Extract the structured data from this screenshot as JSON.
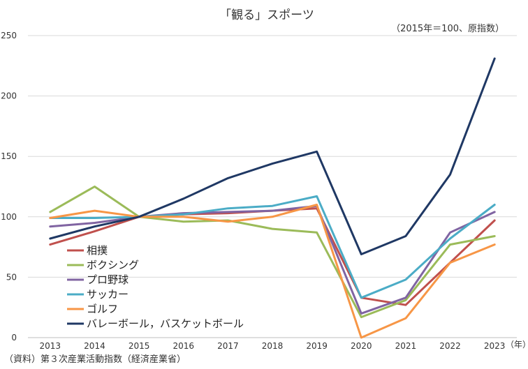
{
  "chart_data": {
    "type": "line",
    "title": "「観る」スポーツ",
    "index_note": "（2015年＝100、原指数）",
    "x_unit": "（年）",
    "source": "（資料）第３次産業活動指数（経済産業省）",
    "ylim": [
      0,
      250
    ],
    "yticks": [
      "0",
      "50",
      "100",
      "150",
      "200",
      "250"
    ],
    "ytick_values": [
      0,
      50,
      100,
      150,
      200,
      250
    ],
    "categories": [
      "2013",
      "2014",
      "2015",
      "2016",
      "2017",
      "2018",
      "2019",
      "2020",
      "2021",
      "2022",
      "2023"
    ],
    "series": [
      {
        "name": "相撲",
        "color": "#c0504d",
        "values": [
          77,
          88,
          100,
          102,
          103,
          105,
          107,
          33,
          27,
          62,
          97
        ]
      },
      {
        "name": "ボクシング",
        "color": "#9bbb59",
        "values": [
          104,
          125,
          100,
          96,
          97,
          90,
          87,
          17,
          31,
          77,
          84
        ]
      },
      {
        "name": "プロ野球",
        "color": "#8064a2",
        "values": [
          92,
          95,
          100,
          103,
          104,
          105,
          109,
          20,
          33,
          87,
          104
        ]
      },
      {
        "name": "サッカー",
        "color": "#4bacc6",
        "values": [
          99,
          99,
          100,
          102,
          107,
          109,
          117,
          33,
          48,
          82,
          110
        ]
      },
      {
        "name": "ゴルフ",
        "color": "#f79646",
        "values": [
          99,
          105,
          100,
          100,
          96,
          100,
          110,
          0,
          16,
          62,
          77
        ]
      },
      {
        "name": "バレーボール，バスケットボール",
        "color": "#1f3864",
        "values": [
          82,
          92,
          100,
          115,
          132,
          144,
          154,
          69,
          84,
          135,
          231
        ]
      }
    ]
  }
}
